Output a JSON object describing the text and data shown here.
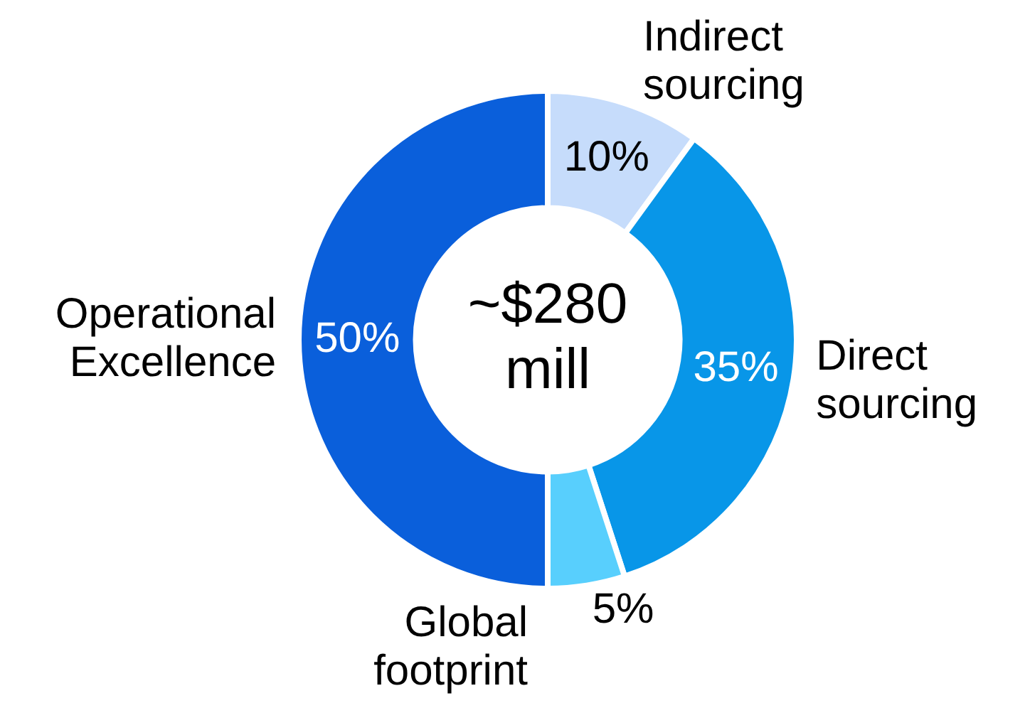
{
  "chart_data": {
    "type": "donut",
    "categories": [
      "Indirect sourcing",
      "Direct sourcing",
      "Global footprint",
      "Operational Excellence"
    ],
    "values": [
      10,
      35,
      5,
      50
    ],
    "colors": [
      "#c6dcfb",
      "#0896e8",
      "#58cffd",
      "#0a5fdb"
    ],
    "value_labels": [
      "10%",
      "35%",
      "5%",
      "50%"
    ],
    "annotations": [
      "~$280\nmill"
    ],
    "legend": false
  }
}
